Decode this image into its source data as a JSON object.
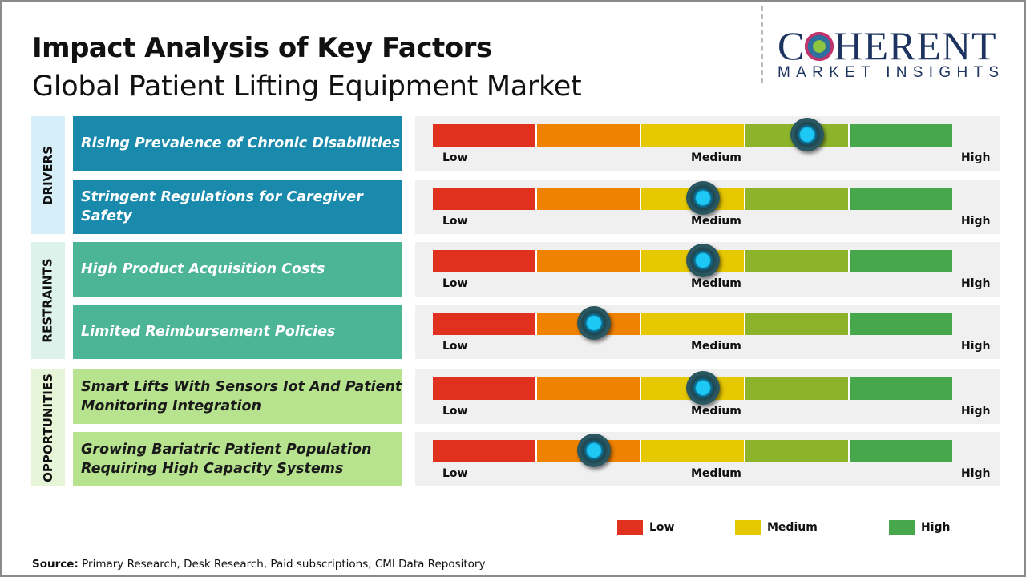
{
  "title": "Impact Analysis of Key Factors",
  "subtitle": "Global Patient Lifting Equipment Market",
  "logo": {
    "main_a": "C",
    "main_b": "HERENT",
    "sub": "MARKET INSIGHTS"
  },
  "colors": {
    "low": "#e0301e",
    "low_mid": "#ef8200",
    "medium": "#e6c800",
    "mid_high": "#8db32a",
    "high": "#46a84a",
    "drivers": "#1a8aac",
    "restraints": "#4bb596",
    "opportunities": "#b7e38e"
  },
  "chart_data": {
    "type": "gauge",
    "scale_labels": [
      "Low",
      "Medium",
      "High"
    ],
    "categories": [
      {
        "name": "DRIVERS",
        "factors": [
          {
            "label": "Rising Prevalence of Chronic Disabilities",
            "impact": 0.72
          },
          {
            "label": "Stringent Regulations for Caregiver Safety",
            "impact": 0.52
          }
        ]
      },
      {
        "name": "RESTRAINTS",
        "factors": [
          {
            "label": "High Product Acquisition Costs",
            "impact": 0.52
          },
          {
            "label": "Limited Reimbursement Policies",
            "impact": 0.31
          }
        ]
      },
      {
        "name": "OPPORTUNITIES",
        "factors": [
          {
            "label": "Smart Lifts With Sensors Iot And Patient Monitoring Integration",
            "impact": 0.52
          },
          {
            "label": "Growing Bariatric Patient Population Requiring High Capacity Systems",
            "impact": 0.31
          }
        ]
      }
    ],
    "legend": [
      {
        "label": "Low",
        "color": "#e0301e"
      },
      {
        "label": "Medium",
        "color": "#e6c800"
      },
      {
        "label": "High",
        "color": "#46a84a"
      }
    ]
  },
  "source": {
    "label": "Source:",
    "text": " Primary Research, Desk Research, Paid subscriptions, CMI Data Repository"
  }
}
